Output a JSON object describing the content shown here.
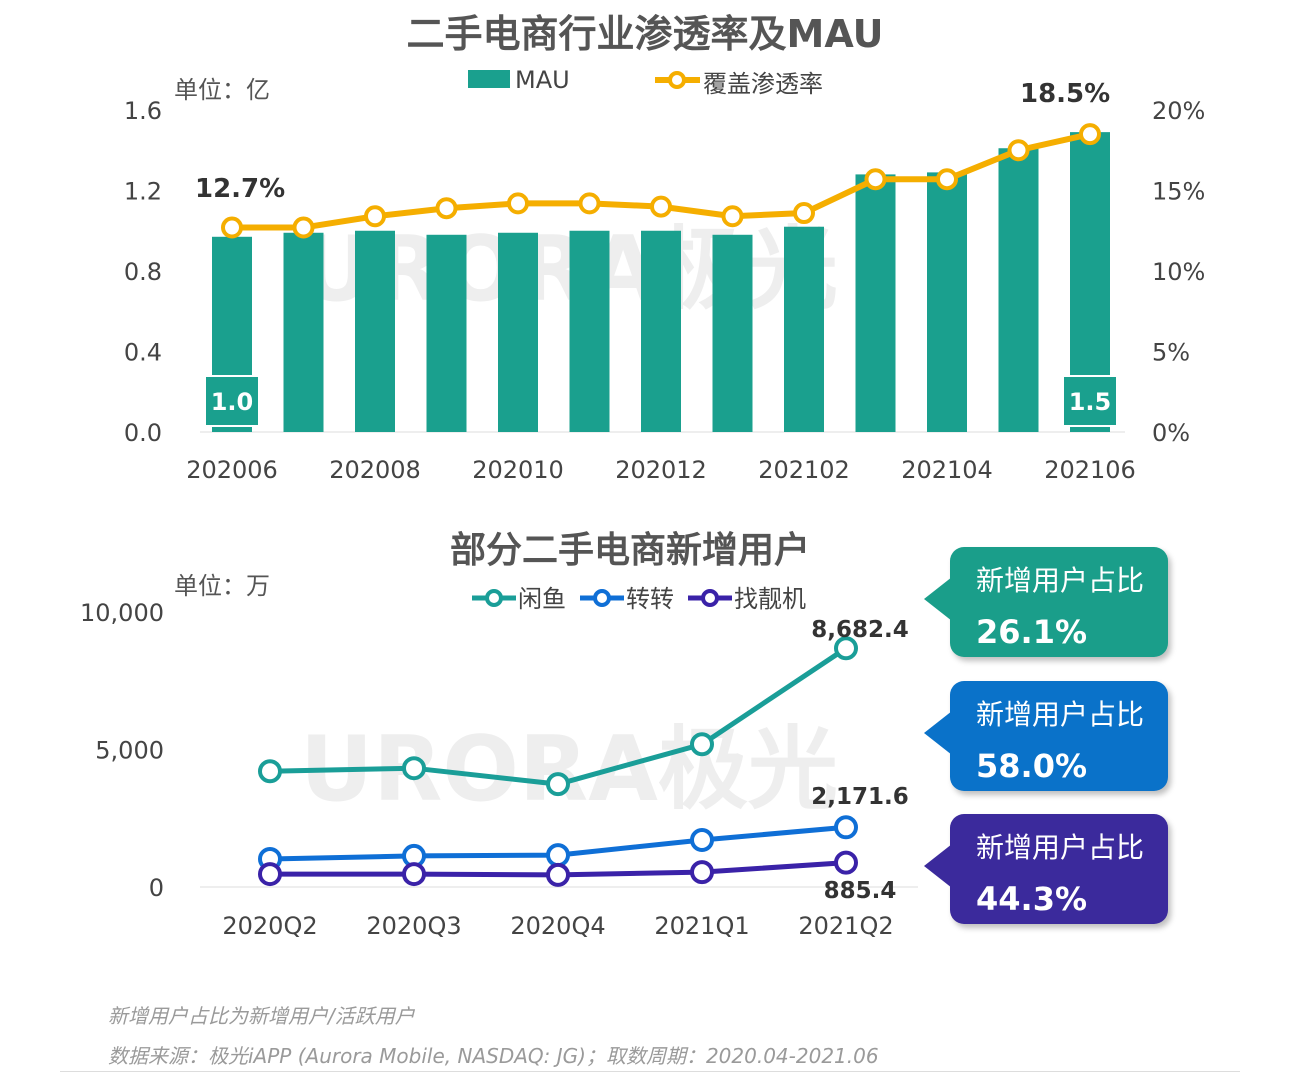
{
  "watermark": "URORA极光",
  "chart_data": [
    {
      "type": "bar+line",
      "title": "二手电商行业渗透率及MAU",
      "unit_label": "单位：亿",
      "categories": [
        "202006",
        "202007",
        "202008",
        "202009",
        "202010",
        "202011",
        "202012",
        "202101",
        "202102",
        "202103",
        "202104",
        "202105",
        "202106"
      ],
      "x_tick_labels": [
        "202006",
        "202008",
        "202010",
        "202012",
        "202102",
        "202104",
        "202106"
      ],
      "series": [
        {
          "name": "MAU",
          "type": "bar",
          "axis": "left",
          "color": "#1aa08e",
          "values": [
            0.97,
            0.99,
            1.0,
            0.98,
            0.99,
            1.0,
            1.0,
            0.98,
            1.02,
            1.28,
            1.29,
            1.41,
            1.49
          ]
        },
        {
          "name": "覆盖渗透率",
          "type": "line",
          "axis": "right",
          "color": "#f5ae00",
          "values": [
            12.7,
            12.7,
            13.4,
            13.9,
            14.2,
            14.2,
            14.0,
            13.4,
            13.6,
            15.7,
            15.7,
            17.5,
            18.5
          ]
        }
      ],
      "left_axis": {
        "range": [
          0,
          1.6
        ],
        "ticks": [
          "0.0",
          "0.4",
          "0.8",
          "1.2",
          "1.6"
        ]
      },
      "right_axis": {
        "range": [
          0,
          20
        ],
        "ticks": [
          "0%",
          "5%",
          "10%",
          "15%",
          "20%"
        ]
      },
      "bar_labels": {
        "first": "1.0",
        "last": "1.5"
      },
      "line_labels": {
        "first": "12.7%",
        "last": "18.5%"
      },
      "legend": "top"
    },
    {
      "type": "line",
      "title": "部分二手电商新增用户",
      "unit_label": "单位：万",
      "categories": [
        "2020Q2",
        "2020Q3",
        "2020Q4",
        "2021Q1",
        "2021Q2"
      ],
      "series": [
        {
          "name": "闲鱼",
          "color": "#1a9e98",
          "values": [
            4210,
            4320,
            3740,
            5190,
            8682.4
          ],
          "last_label": "8,682.4"
        },
        {
          "name": "转转",
          "color": "#0f6fd6",
          "values": [
            1020,
            1130,
            1160,
            1710,
            2171.6
          ],
          "last_label": "2,171.6"
        },
        {
          "name": "找靓机",
          "color": "#3a22a8",
          "values": [
            470,
            470,
            440,
            540,
            885.4
          ],
          "last_label": "885.4"
        }
      ],
      "y_axis": {
        "range": [
          0,
          10000
        ],
        "ticks": [
          "0",
          "5,000",
          "10,000"
        ]
      },
      "legend": "top"
    }
  ],
  "callouts": [
    {
      "label": "新增用户占比",
      "value": "26.1%",
      "color": "#1a9e8a"
    },
    {
      "label": "新增用户占比",
      "value": "58.0%",
      "color": "#0a72c9"
    },
    {
      "label": "新增用户占比",
      "value": "44.3%",
      "color": "#3b2a9c"
    }
  ],
  "footnotes": [
    "新增用户占比为新增用户/活跃用户",
    "数据来源：极光iAPP (Aurora Mobile, NASDAQ: JG)；取数周期：2020.04-2021.06"
  ]
}
